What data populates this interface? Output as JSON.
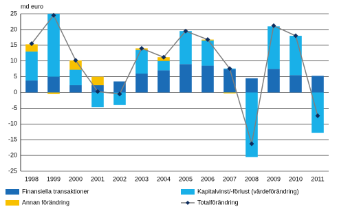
{
  "chart_data": {
    "type": "bar_line",
    "y_label": "md euro",
    "categories": [
      "1998",
      "1999",
      "2000",
      "2001",
      "2002",
      "2003",
      "2004",
      "2005",
      "2006",
      "2007",
      "2008",
      "2009",
      "2010",
      "2011"
    ],
    "series": [
      {
        "name": "Finansiella transaktioner",
        "type": "bar",
        "color": "#1b6cb6",
        "values": [
          3.8,
          5,
          2.3,
          2.3,
          3.5,
          6,
          7,
          9,
          8.5,
          7.4,
          4.5,
          7.5,
          5.5,
          5.3
        ]
      },
      {
        "name": "Kapitalvinst/-förlust (värdeförändring)",
        "type": "bar",
        "color": "#19b0e8",
        "values": [
          9.2,
          20,
          4.9,
          -4.7,
          -4,
          7.5,
          3,
          10.5,
          8,
          0.2,
          -20.5,
          13.5,
          12.5,
          -12.8
        ]
      },
      {
        "name": "Annan förändring",
        "type": "bar",
        "color": "#f8c000",
        "values": [
          2.3,
          -0.5,
          3,
          2.7,
          0,
          0.5,
          1.2,
          0,
          0.3,
          -0.3,
          0,
          0,
          0,
          0
        ]
      },
      {
        "name": "Totalförändring",
        "type": "line",
        "color": "#7f7f7f",
        "marker_color": "#0d2d5e",
        "values": [
          15.5,
          24.5,
          10.2,
          0.3,
          -0.5,
          14,
          11.2,
          19.5,
          16.8,
          7.6,
          -16.3,
          21.2,
          18,
          -7.4
        ]
      }
    ],
    "ylim": [
      -25,
      25
    ],
    "yticks": [
      -25,
      -20,
      -15,
      -10,
      -5,
      0,
      5,
      10,
      15,
      20,
      25
    ],
    "grid": true
  }
}
